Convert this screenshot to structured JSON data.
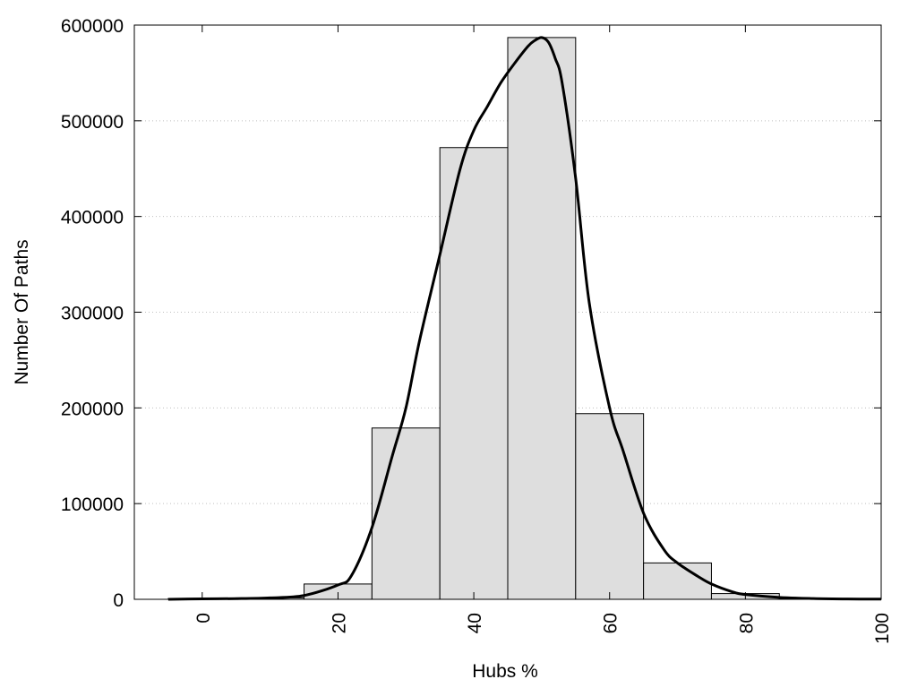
{
  "chart_data": {
    "type": "bar",
    "title": "",
    "xlabel": "Hubs %",
    "ylabel": "Number Of Paths",
    "xlim": [
      -10,
      100
    ],
    "ylim": [
      0,
      600000
    ],
    "grid": "horizontal dotted",
    "legend": "none",
    "bin_width": 10,
    "x_ticks": [
      0,
      20,
      40,
      60,
      80,
      100
    ],
    "x_tick_labels": [
      "0",
      "20",
      "40",
      "60",
      "80",
      "100"
    ],
    "y_ticks": [
      0,
      100000,
      200000,
      300000,
      400000,
      500000,
      600000
    ],
    "y_tick_labels": [
      "0",
      "100000",
      "200000",
      "300000",
      "400000",
      "500000",
      "600000"
    ],
    "bars": {
      "x": [
        0,
        10,
        20,
        30,
        40,
        50,
        60,
        70,
        80,
        90
      ],
      "values": [
        800,
        1500,
        16000,
        179000,
        472000,
        587000,
        194000,
        38000,
        6000,
        500
      ]
    },
    "curve": {
      "x": [
        -5,
        0,
        5,
        10,
        15,
        20,
        22,
        25,
        28,
        30,
        32,
        35,
        38,
        40,
        42,
        44,
        46,
        48,
        49,
        50,
        51,
        52,
        53,
        55,
        57,
        60,
        62,
        65,
        68,
        70,
        73,
        75,
        78,
        80,
        85,
        90,
        95,
        100
      ],
      "values": [
        0,
        500,
        700,
        1500,
        4000,
        15000,
        25000,
        75000,
        150000,
        200000,
        270000,
        360000,
        450000,
        490000,
        515000,
        540000,
        560000,
        578000,
        584000,
        587000,
        582000,
        565000,
        540000,
        440000,
        310000,
        200000,
        155000,
        90000,
        52000,
        38000,
        24000,
        16000,
        8000,
        5000,
        2000,
        800,
        300,
        200
      ]
    },
    "colors": {
      "bar_fill": "#dedede",
      "bar_stroke": "#000000",
      "curve": "#000000",
      "grid": "#bfbfbf",
      "frame": "#000000"
    }
  }
}
